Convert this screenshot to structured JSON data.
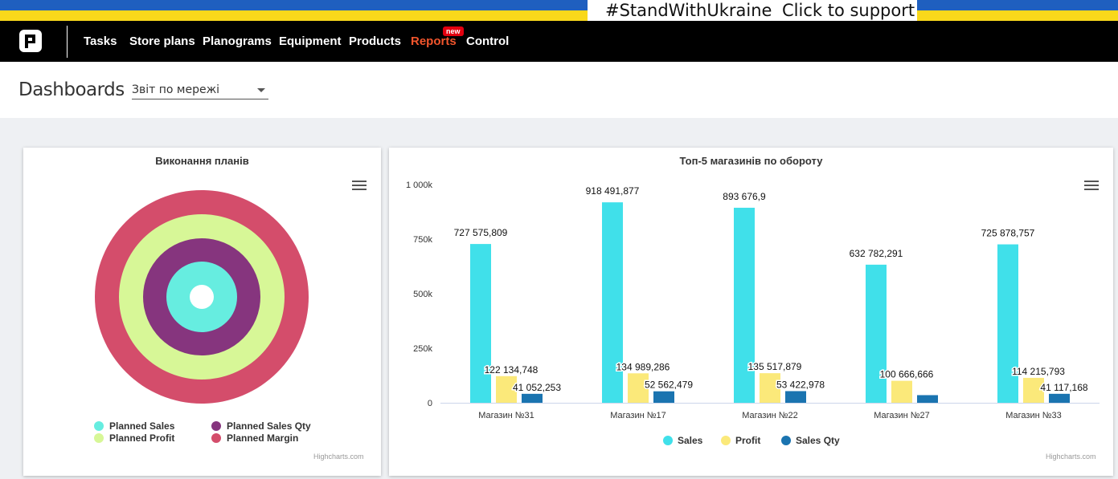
{
  "banner": {
    "hashtag": "#StandWithUkraine",
    "cta": "Click to support",
    "colors": {
      "blue": "#1f5fbf",
      "yellow": "#f9d81b"
    }
  },
  "nav": {
    "items": [
      {
        "label": "Tasks"
      },
      {
        "label": "Store plans"
      },
      {
        "label": "Planograms"
      },
      {
        "label": "Equipment"
      },
      {
        "label": "Products"
      },
      {
        "label": "Reports",
        "active": true,
        "badge": "new"
      },
      {
        "label": "Control"
      }
    ],
    "active_color": "#f2552c"
  },
  "page": {
    "title": "Dashboards",
    "report_select": {
      "value": "Звіт по мережі"
    }
  },
  "plans_card": {
    "menu_icon": "hamburger-menu-icon",
    "credits": "Highcharts.com"
  },
  "top5_card": {
    "menu_icon": "hamburger-menu-icon",
    "credits": "Highcharts.com"
  },
  "chart_data": [
    {
      "type": "pie",
      "title": "Виконання планів",
      "subtype": "concentric-rings",
      "rings": [
        {
          "name": "Planned Sales",
          "color": "#66ede0"
        },
        {
          "name": "Planned Sales Qty",
          "color": "#86357e"
        },
        {
          "name": "Planned Profit",
          "color": "#d7f797"
        },
        {
          "name": "Planned Margin",
          "color": "#d44d6b"
        }
      ],
      "legend": "bottom"
    },
    {
      "type": "bar",
      "title": "Топ-5 магазинів по обороту",
      "categories": [
        "Магазин №31",
        "Магазин №17",
        "Магазин №22",
        "Магазин №27",
        "Магазин №33"
      ],
      "series": [
        {
          "name": "Sales",
          "color": "#40e0ea",
          "values": [
            727575.809,
            918491.877,
            893676.9,
            632782.291,
            725878.757
          ],
          "labels": [
            "727 575,809",
            "918 491,877",
            "893 676,9",
            "632 782,291",
            "725 878,757"
          ]
        },
        {
          "name": "Profit",
          "color": "#fbe97a",
          "values": [
            122134.748,
            134989.286,
            135517.879,
            100666.666,
            114215.793
          ],
          "labels": [
            "122 134,748",
            "134 989,286",
            "135 517,879",
            "100 666,666",
            "114 215,793"
          ]
        },
        {
          "name": "Sales Qty",
          "color": "#1a74b0",
          "values": [
            41052.253,
            52562.479,
            53422.978,
            35000,
            41117.168
          ],
          "labels": [
            "41 052,253",
            "52 562,479",
            "53 422,978",
            "",
            "41 117,168"
          ]
        }
      ],
      "yticks": [
        {
          "value": 0,
          "label": "0"
        },
        {
          "value": 250000,
          "label": "250k"
        },
        {
          "value": 500000,
          "label": "500k"
        },
        {
          "value": 750000,
          "label": "750k"
        },
        {
          "value": 1000000,
          "label": "1 000k"
        }
      ],
      "ylim": [
        0,
        1000000
      ],
      "legend": "bottom"
    }
  ]
}
